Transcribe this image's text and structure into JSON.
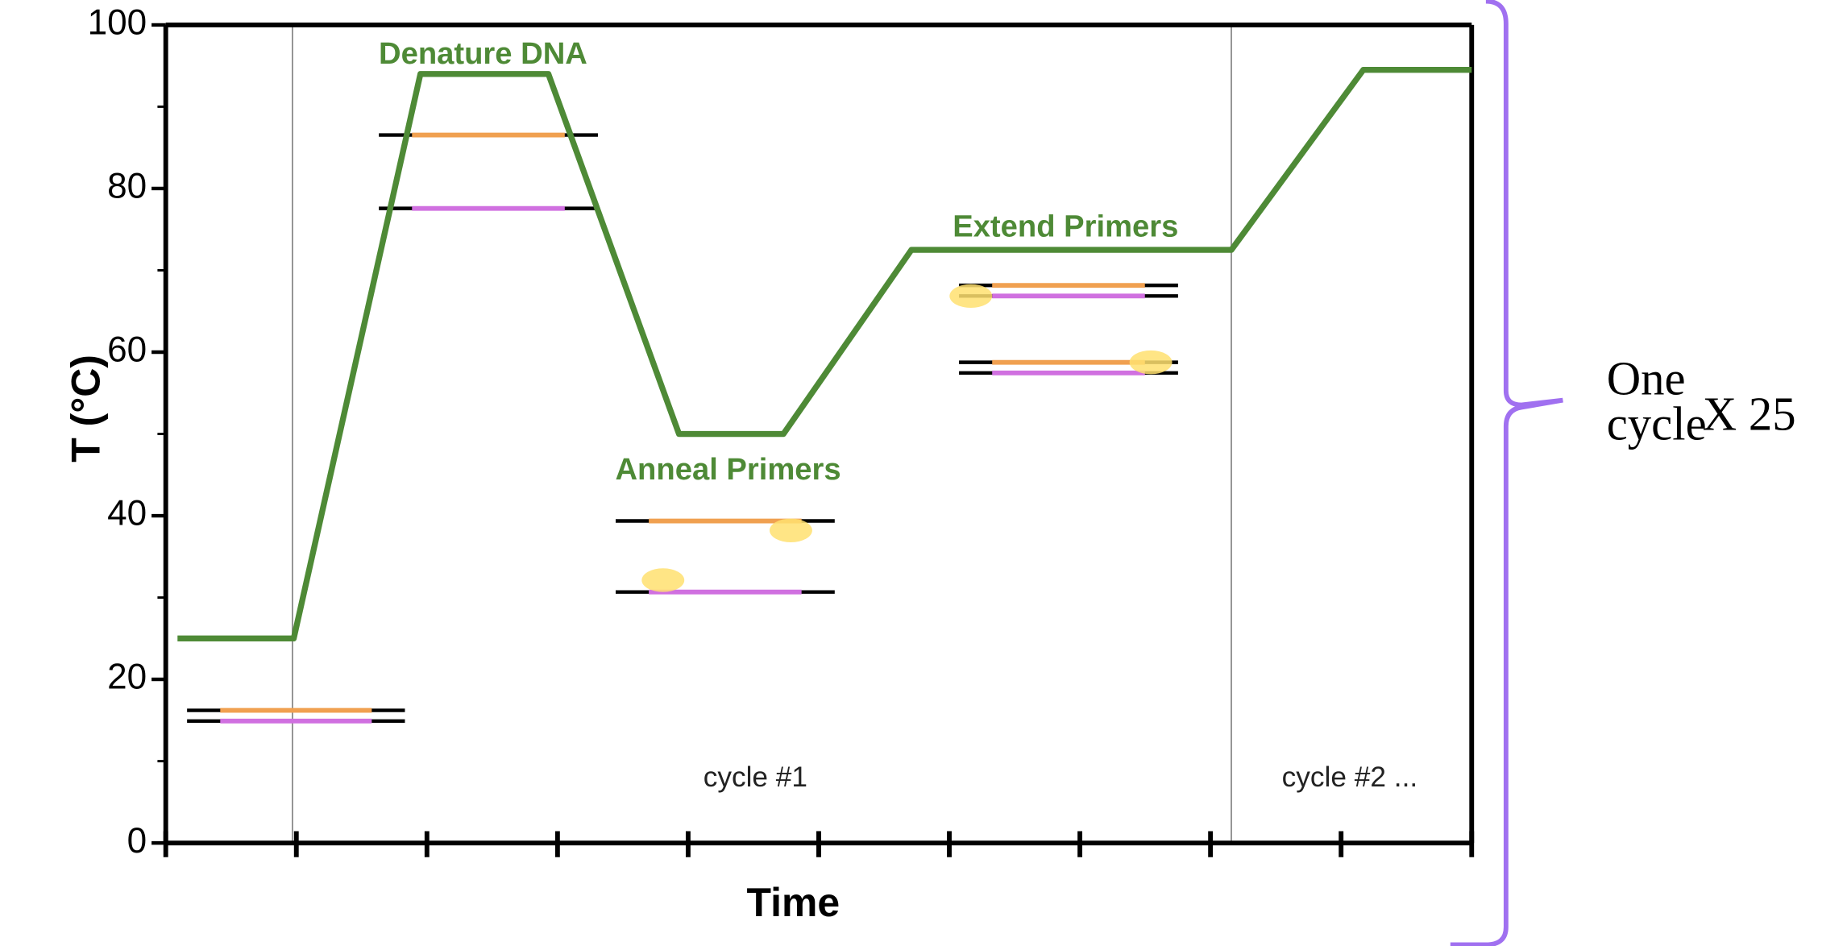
{
  "chart_data": {
    "type": "line",
    "ylabel": "T (°C)",
    "xlabel": "Time",
    "x": [
      0.09,
      0.98,
      1.95,
      2.93,
      3.93,
      4.73,
      5.71,
      8.16,
      9.17,
      10
    ],
    "values": [
      25,
      25,
      94,
      94,
      50,
      50,
      72.5,
      72.5,
      94.5,
      94.5
    ],
    "color": "#4e8a36",
    "xlim": [
      0,
      10
    ],
    "xticks": [
      0,
      1,
      2,
      3,
      4,
      5,
      6,
      7,
      8,
      9,
      10
    ],
    "ylim": [
      0,
      100
    ],
    "yticks": [
      0,
      20,
      40,
      60,
      80,
      100
    ],
    "grid": false,
    "annotations": [
      "Denature DNA",
      "Anneal Primers",
      "Extend Primers",
      "cycle #1",
      "cycle #2 ..."
    ]
  },
  "bracket": {
    "label_lines": [
      "One",
      "cycle"
    ],
    "multiplier": "X 25"
  }
}
